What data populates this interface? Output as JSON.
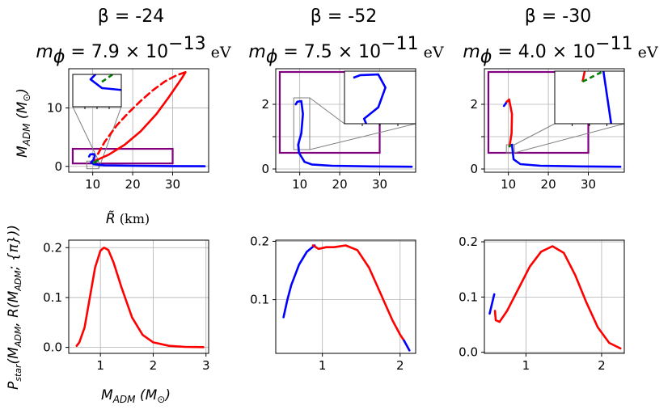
{
  "figure": {
    "columns": [
      {
        "beta": "β = -24",
        "mass": "m",
        "phi": "ϕ",
        "mass_value": " = 7.9 × 10",
        "exp": "−13",
        "unit": " eV"
      },
      {
        "beta": "β = -52",
        "mass": "m",
        "phi": "ϕ",
        "mass_value": " = 7.5 × 10",
        "exp": "−11",
        "unit": " eV"
      },
      {
        "beta": "β = -30",
        "mass": "m",
        "phi": "ϕ",
        "mass_value": " = 4.0 × 10",
        "exp": "−11",
        "unit": " eV"
      }
    ],
    "top_ylabel": "M",
    "top_ylabel_sub": "ADM",
    "top_ylabel_unit": " (M",
    "top_ylabel_unit_sub": "⊙",
    "top_ylabel_close": ")",
    "top_xlabel": "R̃",
    "top_xlabel_unit": " (km)",
    "bottom_ylabel": "P",
    "bottom_ylabel_sub": "star",
    "bottom_ylabel_args": "(M",
    "bottom_ylabel_args2": ", R(M",
    "bottom_ylabel_args3": "; {π}))",
    "bottom_xlabel": "M",
    "bottom_xlabel_sub": "ADM",
    "bottom_xlabel_unit": " (M",
    "bottom_xlabel_unit_sub": "⊙",
    "bottom_xlabel_close": ")"
  },
  "chart_data": [
    {
      "type": "line",
      "panel": "top-left",
      "xlim": [
        4,
        39
      ],
      "ylim": [
        -1,
        16.7
      ],
      "xticks": [
        10,
        20,
        30
      ],
      "yticks": [
        0,
        10
      ],
      "grid": true,
      "series": [
        {
          "color": "#ff0000",
          "style": "solid",
          "x": [
            10.3,
            11.2,
            14,
            18,
            22,
            26,
            29,
            31,
            32.5,
            33.2
          ],
          "y": [
            1.0,
            1.15,
            2,
            3.7,
            6,
            9,
            11.8,
            13.8,
            15.3,
            16.1
          ]
        },
        {
          "color": "#ff0000",
          "style": "dashed",
          "x": [
            33.2,
            31,
            28,
            25,
            22,
            19,
            16,
            13,
            11.2
          ],
          "y": [
            16.1,
            15.6,
            14.5,
            13,
            11.2,
            9.2,
            7,
            4.2,
            2.0
          ]
        },
        {
          "color": "#0000ff",
          "style": "solid",
          "x": [
            9.1,
            9.4,
            10.3,
            10.5,
            10.2,
            9.6,
            10.3,
            13,
            20,
            30,
            38
          ],
          "y": [
            1.7,
            2.05,
            2.1,
            1.75,
            1.1,
            0.7,
            0.35,
            0.18,
            0.1,
            0.05,
            0.03
          ]
        },
        {
          "color": "#008000",
          "style": "dashed",
          "x": [
            10.3,
            11.2
          ],
          "y": [
            0.6,
            1.0
          ]
        }
      ],
      "rect_x": [
        5,
        30
      ],
      "rect_y": [
        0.5,
        3.0
      ],
      "zoom_x": [
        8.5,
        11.5
      ],
      "zoom_y": [
        -0.4,
        0.9
      ]
    },
    {
      "type": "line",
      "panel": "top-middle",
      "xlim": [
        4,
        39
      ],
      "ylim": [
        -0.1,
        3.1
      ],
      "xticks": [
        10,
        20,
        30
      ],
      "yticks": [
        0,
        1,
        2
      ],
      "yticklabels": [
        "0",
        "",
        "2"
      ],
      "grid": true,
      "series": [
        {
          "color": "#0000ff",
          "style": "solid",
          "x": [
            9.0,
            9.4,
            10.4,
            10.8,
            10.4,
            9.6,
            9.8,
            11.2,
            13,
            18,
            28,
            38
          ],
          "y": [
            2.0,
            2.08,
            2.1,
            1.7,
            1.1,
            0.75,
            0.5,
            0.22,
            0.14,
            0.1,
            0.08,
            0.07
          ]
        }
      ],
      "rect_x": [
        5,
        30
      ],
      "rect_y": [
        0.5,
        3.0
      ],
      "zoom_x": [
        8.5,
        12.5
      ],
      "zoom_y": [
        0.6,
        2.2
      ]
    },
    {
      "type": "line",
      "panel": "top-right",
      "xlim": [
        4,
        39
      ],
      "ylim": [
        -0.1,
        3.1
      ],
      "xticks": [
        10,
        20,
        30
      ],
      "yticks": [
        0,
        1,
        2
      ],
      "yticklabels": [
        "0",
        "",
        "2"
      ],
      "grid": true,
      "series": [
        {
          "color": "#0000ff",
          "style": "solid",
          "x": [
            8.9,
            9.2,
            9.6
          ],
          "y": [
            1.95,
            2.0,
            2.08
          ]
        },
        {
          "color": "#ff0000",
          "style": "solid",
          "x": [
            9.6,
            10.2,
            10.9,
            10.8,
            10.3
          ],
          "y": [
            2.08,
            2.15,
            1.7,
            1.1,
            0.7
          ]
        },
        {
          "color": "#008000",
          "style": "dashed",
          "x": [
            10.3,
            10.9
          ],
          "y": [
            0.7,
            0.75
          ]
        },
        {
          "color": "#0000ff",
          "style": "solid",
          "x": [
            10.9,
            11.3,
            13,
            18,
            28,
            38
          ],
          "y": [
            0.75,
            0.3,
            0.15,
            0.1,
            0.08,
            0.07
          ]
        }
      ],
      "rect_x": [
        5,
        30
      ],
      "rect_y": [
        0.5,
        3.0
      ],
      "zoom_x": [
        9.5,
        11.5
      ],
      "zoom_y": [
        0.5,
        0.75
      ]
    },
    {
      "type": "line",
      "panel": "bottom-left",
      "xlim": [
        0.4,
        3.05
      ],
      "ylim": [
        -0.012,
        0.215
      ],
      "xticks": [
        1,
        2,
        3
      ],
      "yticks": [
        0.0,
        0.1,
        0.2
      ],
      "grid": true,
      "series": [
        {
          "color": "#ff0000",
          "style": "solid",
          "x": [
            0.55,
            0.6,
            0.7,
            0.8,
            0.9,
            1.0,
            1.07,
            1.15,
            1.25,
            1.4,
            1.6,
            1.8,
            2.0,
            2.3,
            2.6,
            2.95
          ],
          "y": [
            0.003,
            0.01,
            0.04,
            0.1,
            0.16,
            0.194,
            0.2,
            0.195,
            0.17,
            0.12,
            0.06,
            0.025,
            0.01,
            0.003,
            0.001,
            0.0005
          ]
        }
      ]
    },
    {
      "type": "line",
      "panel": "bottom-middle",
      "xlim": [
        0.4,
        2.2
      ],
      "ylim": [
        0.008,
        0.202
      ],
      "xticks": [
        1,
        2
      ],
      "yticks": [
        0.1,
        0.2
      ],
      "grid": true,
      "series": [
        {
          "color": "#0000ff",
          "style": "solid",
          "x": [
            0.5,
            0.55,
            0.6,
            0.7,
            0.8,
            0.9
          ],
          "y": [
            0.07,
            0.1,
            0.125,
            0.16,
            0.182,
            0.193
          ]
        },
        {
          "color": "#ff0000",
          "style": "solid",
          "x": [
            0.88,
            0.95,
            1.05,
            1.15,
            1.3,
            1.45,
            1.6,
            1.75,
            1.9,
            2.0,
            2.05
          ],
          "y": [
            0.193,
            0.187,
            0.19,
            0.19,
            0.193,
            0.185,
            0.155,
            0.11,
            0.065,
            0.04,
            0.03
          ]
        },
        {
          "color": "#0000ff",
          "style": "solid",
          "x": [
            2.05,
            2.12
          ],
          "y": [
            0.03,
            0.013
          ]
        }
      ]
    },
    {
      "type": "line",
      "panel": "bottom-right",
      "xlim": [
        0.45,
        2.3
      ],
      "ylim": [
        -0.002,
        0.203
      ],
      "xticks": [
        1,
        2
      ],
      "yticks": [
        0.0,
        0.1,
        0.2
      ],
      "grid": true,
      "series": [
        {
          "color": "#0000ff",
          "style": "solid",
          "x": [
            0.52,
            0.58
          ],
          "y": [
            0.07,
            0.105
          ]
        },
        {
          "color": "#ff0000",
          "style": "solid",
          "x": [
            0.59,
            0.6,
            0.65,
            0.75,
            0.9,
            1.05,
            1.2,
            1.35,
            1.5,
            1.65,
            1.8,
            1.95,
            2.1,
            2.25
          ],
          "y": [
            0.075,
            0.058,
            0.055,
            0.075,
            0.115,
            0.155,
            0.182,
            0.192,
            0.18,
            0.14,
            0.09,
            0.045,
            0.017,
            0.007
          ]
        }
      ]
    }
  ]
}
